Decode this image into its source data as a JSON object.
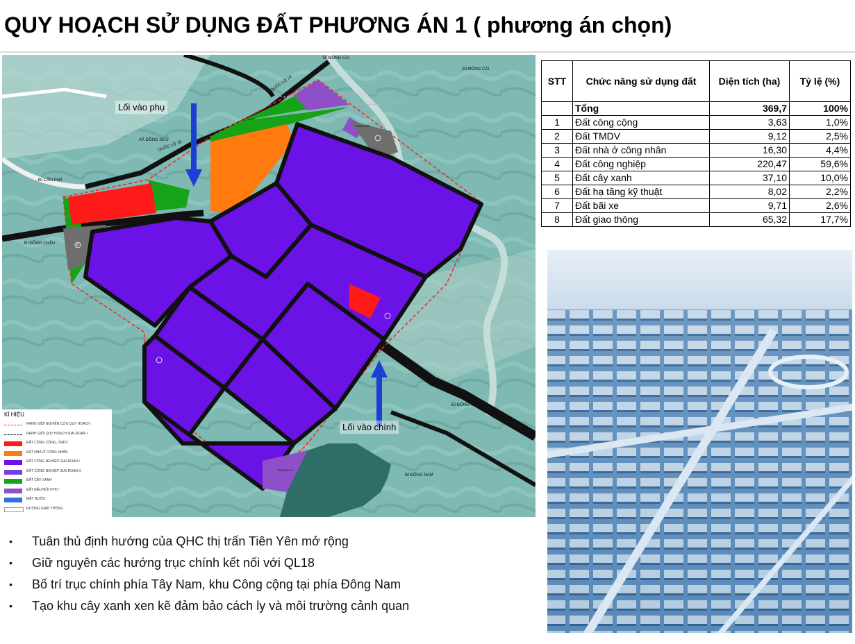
{
  "title": "QUY HOẠCH SỬ DỤNG ĐẤT PHƯƠNG ÁN 1 ( phương án chọn)",
  "map": {
    "callouts": {
      "side_entrance": "Lối vào phụ",
      "main_entrance": "Lối vào chính"
    },
    "place_labels": {
      "di_mong_cai_top": "ĐI MÓNG CÁI",
      "di_mong_cai_right": "ĐI MÓNG CÁI",
      "quoc_lo_18_a": "QUỐC LỘ 18",
      "quoc_lo_18_b": "QUỐC LỘ 18",
      "xa_dong_ngu": "XÃ ĐỒNG NGŨ",
      "di_cam_pha": "ĐI CẨM PHẢ",
      "di_dong_chau": "ĐI ĐỒNG CHÂU",
      "di_dong_nam_1": "ĐI ĐÔNG NAM",
      "di_dong_nam_2": "ĐI ĐÔNG NAM",
      "tram_dien_top": "TRẠM ĐIỆN",
      "tram_xlnt": "TRẠM XLNT",
      "parking_symbol": "P"
    },
    "legend": {
      "title": "KÍ HIỆU",
      "items": [
        {
          "label": "RANH GIỚI NGHIÊN CỨU QUY HOẠCH",
          "kind": "line-red"
        },
        {
          "label": "RANH GIỚI QUY HOẠCH GIAI ĐOẠN I",
          "kind": "line-black"
        },
        {
          "label": "ĐẤT CÔNG CỘNG, TMDV",
          "color": "#ff1a1a"
        },
        {
          "label": "ĐẤT NHÀ Ở CÔNG NHÂN",
          "color": "#ff7b10"
        },
        {
          "label": "ĐẤT CÔNG NGHIỆP GIAI ĐOẠN I",
          "color": "#6b12e6"
        },
        {
          "label": "ĐẤT CÔNG NGHIỆP GIAI ĐOẠN II",
          "color": "#7a3fe0"
        },
        {
          "label": "ĐẤT CÂY XANH",
          "color": "#17a317"
        },
        {
          "label": "ĐẤT ĐẦU MỐI HTKT",
          "color": "#8f4fc9"
        },
        {
          "label": "MẶT NƯỚC",
          "color": "#2f6fe0"
        },
        {
          "label": "ĐƯỜNG GIAO THÔNG",
          "kind": "box-white"
        }
      ]
    }
  },
  "table": {
    "headers": [
      "STT",
      "Chức năng sử dụng đất",
      "Diện tích (ha)",
      "Tỷ lệ (%)"
    ],
    "total": {
      "stt": "",
      "name": "Tổng",
      "area": "369,7",
      "ratio": "100%"
    },
    "rows": [
      {
        "stt": "1",
        "name": "Đất công cộng",
        "area": "3,63",
        "ratio": "1,0%"
      },
      {
        "stt": "2",
        "name": "Đất TMDV",
        "area": "9,12",
        "ratio": "2,5%"
      },
      {
        "stt": "3",
        "name": "Đất nhà ở công nhân",
        "area": "16,30",
        "ratio": "4,4%"
      },
      {
        "stt": "4",
        "name": "Đất công nghiệp",
        "area": "220,47",
        "ratio": "59,6%"
      },
      {
        "stt": "5",
        "name": "Đất cây xanh",
        "area": "37,10",
        "ratio": "10,0%"
      },
      {
        "stt": "6",
        "name": "Đất hạ tầng kỹ thuật",
        "area": "8,02",
        "ratio": "2,2%"
      },
      {
        "stt": "7",
        "name": "Đất bãi xe",
        "area": "9,71",
        "ratio": "2,6%"
      },
      {
        "stt": "8",
        "name": "Đất giao thông",
        "area": "65,32",
        "ratio": "17,7%"
      }
    ]
  },
  "bullets": [
    "Tuân thủ định hướng của QHC thị trấn Tiên Yên mở rộng",
    "Giữ nguyên các hướng trục chính kết nối với QL18",
    "Bố trí trục chính phía Tây Nam, khu Công cộng tại phía Đông Nam",
    "Tạo khu cây xanh xen kẽ đảm bảo cách ly và môi trường cảnh quan"
  ],
  "bullet_symbol": "•",
  "colors": {
    "industrial": "#6b12e6",
    "public": "#ff1a1a",
    "housing": "#ff7b10",
    "green": "#17a317",
    "infrastructure": "#8f4fc9",
    "parking": "#6e6e6e",
    "water": "#2e6e66",
    "arrow": "#1a3fd6",
    "terrain": "#7fb9b3"
  }
}
